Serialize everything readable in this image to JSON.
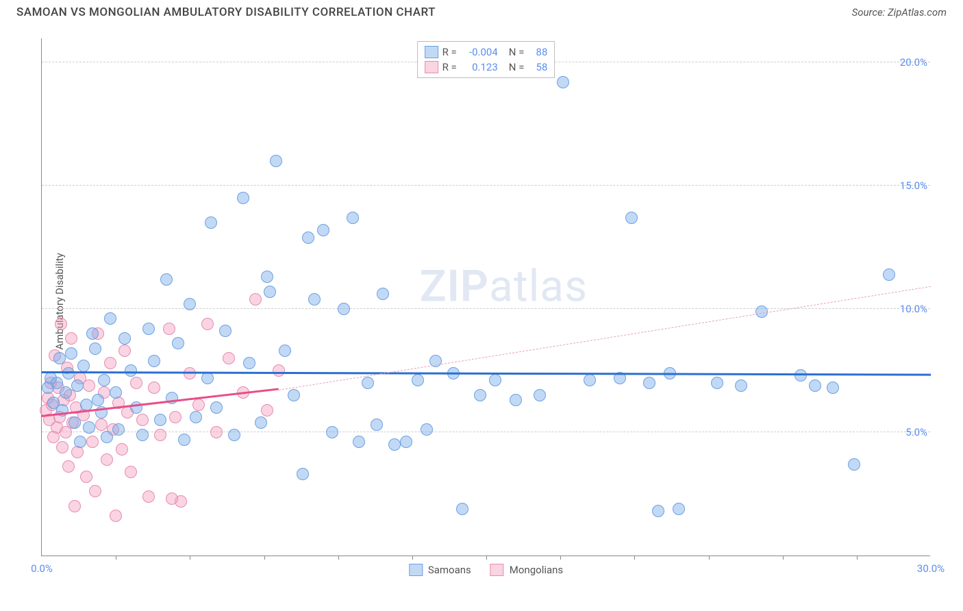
{
  "title": "SAMOAN VS MONGOLIAN AMBULATORY DISABILITY CORRELATION CHART",
  "source": "Source: ZipAtlas.com",
  "ylabel": "Ambulatory Disability",
  "watermark_zip": "ZIP",
  "watermark_atlas": "atlas",
  "chart": {
    "type": "scatter",
    "xlim": [
      0,
      30
    ],
    "ylim": [
      0,
      21
    ],
    "x_min_label": "0.0%",
    "x_max_label": "30.0%",
    "x_ticks": [
      2.5,
      5.0,
      7.5,
      10.0,
      12.5,
      15.0,
      17.5,
      20.0,
      22.5,
      25.0,
      27.5
    ],
    "y_gridlines": [
      {
        "v": 5.0,
        "label": "5.0%"
      },
      {
        "v": 10.0,
        "label": "10.0%"
      },
      {
        "v": 15.0,
        "label": "15.0%"
      },
      {
        "v": 20.0,
        "label": "20.0%"
      }
    ],
    "marker_radius": 9,
    "marker_stroke_width": 1.2,
    "background": "#ffffff",
    "grid_color": "#cccccc",
    "axis_color": "#888888",
    "tick_label_color": "#5B8DEF"
  },
  "series": {
    "samoans": {
      "label": "Samoans",
      "fill": "rgba(120,170,235,0.45)",
      "stroke": "#6aa0e0",
      "points": [
        [
          0.2,
          6.8
        ],
        [
          0.3,
          7.2
        ],
        [
          0.4,
          6.2
        ],
        [
          0.5,
          7.0
        ],
        [
          0.6,
          8.0
        ],
        [
          0.7,
          5.9
        ],
        [
          0.8,
          6.6
        ],
        [
          0.9,
          7.4
        ],
        [
          1.0,
          8.2
        ],
        [
          1.1,
          5.4
        ],
        [
          1.2,
          6.9
        ],
        [
          1.3,
          4.6
        ],
        [
          1.4,
          7.7
        ],
        [
          1.5,
          6.1
        ],
        [
          1.6,
          5.2
        ],
        [
          1.7,
          9.0
        ],
        [
          1.8,
          8.4
        ],
        [
          1.9,
          6.3
        ],
        [
          2.0,
          5.8
        ],
        [
          2.1,
          7.1
        ],
        [
          2.2,
          4.8
        ],
        [
          2.3,
          9.6
        ],
        [
          2.5,
          6.6
        ],
        [
          2.6,
          5.1
        ],
        [
          2.8,
          8.8
        ],
        [
          3.0,
          7.5
        ],
        [
          3.2,
          6.0
        ],
        [
          3.4,
          4.9
        ],
        [
          3.6,
          9.2
        ],
        [
          3.8,
          7.9
        ],
        [
          4.0,
          5.5
        ],
        [
          4.2,
          11.2
        ],
        [
          4.4,
          6.4
        ],
        [
          4.6,
          8.6
        ],
        [
          4.8,
          4.7
        ],
        [
          5.0,
          10.2
        ],
        [
          5.2,
          5.6
        ],
        [
          5.6,
          7.2
        ],
        [
          5.7,
          13.5
        ],
        [
          5.9,
          6.0
        ],
        [
          6.2,
          9.1
        ],
        [
          6.5,
          4.9
        ],
        [
          6.8,
          14.5
        ],
        [
          7.0,
          7.8
        ],
        [
          7.4,
          5.4
        ],
        [
          7.6,
          11.3
        ],
        [
          7.9,
          16.0
        ],
        [
          8.2,
          8.3
        ],
        [
          8.5,
          6.5
        ],
        [
          8.8,
          3.3
        ],
        [
          9.0,
          12.9
        ],
        [
          9.2,
          10.4
        ],
        [
          9.5,
          13.2
        ],
        [
          9.8,
          5.0
        ],
        [
          10.2,
          10.0
        ],
        [
          10.5,
          13.7
        ],
        [
          10.7,
          4.6
        ],
        [
          11.0,
          7.0
        ],
        [
          11.3,
          5.3
        ],
        [
          11.5,
          10.6
        ],
        [
          11.9,
          4.5
        ],
        [
          12.3,
          4.6
        ],
        [
          12.7,
          7.1
        ],
        [
          13.0,
          5.1
        ],
        [
          13.3,
          7.9
        ],
        [
          13.9,
          7.4
        ],
        [
          14.2,
          1.9
        ],
        [
          14.8,
          6.5
        ],
        [
          15.3,
          7.1
        ],
        [
          16.0,
          6.3
        ],
        [
          16.8,
          6.5
        ],
        [
          17.6,
          19.2
        ],
        [
          18.5,
          7.1
        ],
        [
          19.5,
          7.2
        ],
        [
          19.9,
          13.7
        ],
        [
          20.5,
          7.0
        ],
        [
          20.8,
          1.8
        ],
        [
          21.2,
          7.4
        ],
        [
          21.5,
          1.9
        ],
        [
          22.8,
          7.0
        ],
        [
          23.6,
          6.9
        ],
        [
          24.3,
          9.9
        ],
        [
          25.6,
          7.3
        ],
        [
          26.1,
          6.9
        ],
        [
          26.7,
          6.8
        ],
        [
          27.4,
          3.7
        ],
        [
          28.6,
          11.4
        ],
        [
          7.7,
          10.7
        ]
      ],
      "trend": {
        "x1": 0,
        "y1": 7.4,
        "x2": 30,
        "y2": 7.3,
        "color": "#2b6fd1",
        "width": 3,
        "dash": "none"
      }
    },
    "mongolians": {
      "label": "Mongolians",
      "fill": "rgba(245,160,190,0.45)",
      "stroke": "#e58cb0",
      "points": [
        [
          0.15,
          5.9
        ],
        [
          0.2,
          6.4
        ],
        [
          0.25,
          5.5
        ],
        [
          0.3,
          7.0
        ],
        [
          0.35,
          6.1
        ],
        [
          0.4,
          4.8
        ],
        [
          0.45,
          8.1
        ],
        [
          0.5,
          5.2
        ],
        [
          0.55,
          6.8
        ],
        [
          0.6,
          5.6
        ],
        [
          0.65,
          9.4
        ],
        [
          0.7,
          4.4
        ],
        [
          0.75,
          6.3
        ],
        [
          0.8,
          5.0
        ],
        [
          0.85,
          7.6
        ],
        [
          0.9,
          3.6
        ],
        [
          0.95,
          6.5
        ],
        [
          1.0,
          8.8
        ],
        [
          1.05,
          5.4
        ],
        [
          1.1,
          2.0
        ],
        [
          1.15,
          6.0
        ],
        [
          1.2,
          4.2
        ],
        [
          1.3,
          7.2
        ],
        [
          1.4,
          5.7
        ],
        [
          1.5,
          3.2
        ],
        [
          1.6,
          6.9
        ],
        [
          1.7,
          4.6
        ],
        [
          1.8,
          2.6
        ],
        [
          1.9,
          9.0
        ],
        [
          2.0,
          5.3
        ],
        [
          2.1,
          6.6
        ],
        [
          2.2,
          3.9
        ],
        [
          2.3,
          7.8
        ],
        [
          2.4,
          5.1
        ],
        [
          2.5,
          1.6
        ],
        [
          2.6,
          6.2
        ],
        [
          2.7,
          4.3
        ],
        [
          2.8,
          8.3
        ],
        [
          2.9,
          5.8
        ],
        [
          3.0,
          3.4
        ],
        [
          3.2,
          7.0
        ],
        [
          3.4,
          5.5
        ],
        [
          3.6,
          2.4
        ],
        [
          3.8,
          6.8
        ],
        [
          4.0,
          4.9
        ],
        [
          4.3,
          9.2
        ],
        [
          4.5,
          5.6
        ],
        [
          4.7,
          2.2
        ],
        [
          5.0,
          7.4
        ],
        [
          5.3,
          6.1
        ],
        [
          5.6,
          9.4
        ],
        [
          5.9,
          5.0
        ],
        [
          6.3,
          8.0
        ],
        [
          6.8,
          6.6
        ],
        [
          7.2,
          10.4
        ],
        [
          7.6,
          5.9
        ],
        [
          8.0,
          7.5
        ],
        [
          4.4,
          2.3
        ]
      ],
      "trend_solid": {
        "x1": 0,
        "y1": 5.6,
        "x2": 8.0,
        "y2": 6.7,
        "color": "#e94d87",
        "width": 3
      },
      "trend_dash": {
        "x1": 8.0,
        "y1": 6.7,
        "x2": 30,
        "y2": 10.9,
        "color": "#e9a0b8",
        "width": 1.5
      }
    }
  },
  "legend_top": {
    "rows": [
      {
        "swatch_fill": "rgba(120,170,235,0.45)",
        "swatch_stroke": "#6aa0e0",
        "r_label": "R =",
        "r_val": "-0.004",
        "n_label": "N =",
        "n_val": "88"
      },
      {
        "swatch_fill": "rgba(245,160,190,0.45)",
        "swatch_stroke": "#e58cb0",
        "r_label": "R =",
        "r_val": "0.123",
        "n_label": "N =",
        "n_val": "58"
      }
    ]
  },
  "legend_bottom": [
    {
      "swatch_fill": "rgba(120,170,235,0.45)",
      "swatch_stroke": "#6aa0e0",
      "label": "Samoans"
    },
    {
      "swatch_fill": "rgba(245,160,190,0.45)",
      "swatch_stroke": "#e58cb0",
      "label": "Mongolians"
    }
  ]
}
